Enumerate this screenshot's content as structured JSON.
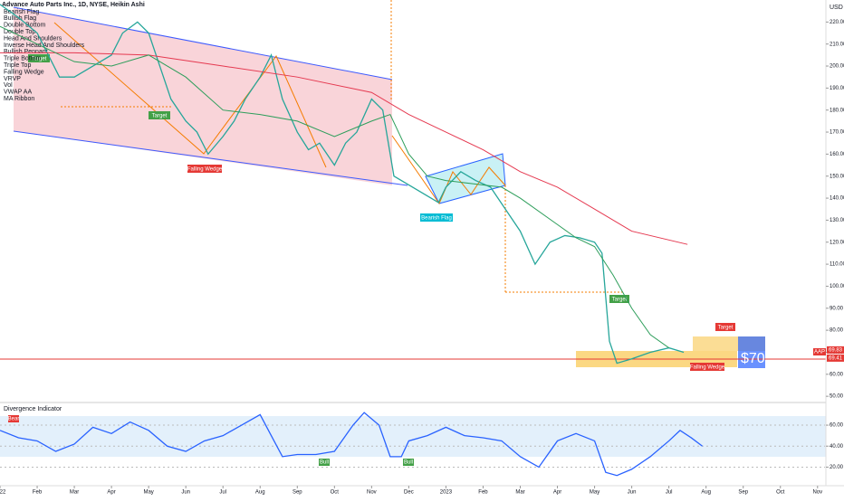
{
  "header": {
    "title": "Advance Auto Parts Inc., 1D, NYSE, Heikin Ashi",
    "indicators": [
      "Bearish Flag",
      "Bullish Flag",
      "Double Bottom",
      "Double Top",
      "Head And Shoulders",
      "Inverse Head And Shoulders",
      "Bullish Pennant",
      "Triple Bottom",
      "Triple Top",
      "Falling Wedge",
      "VRVP",
      "Vol",
      "VWAP AA",
      "MA Ribbon"
    ]
  },
  "annotations": {
    "target_1": "Target",
    "target_2": "Target",
    "target_3": "Target",
    "target_4": "Target",
    "wedge_1": "Falling Wedge",
    "wedge_2": "Falling Wedge",
    "flag": "Bearish Flag",
    "price_note": "$70",
    "currency": "USD",
    "symbol": "AAP",
    "bear": "Bear",
    "bull_1": "Bull",
    "bull_2": "Bull"
  },
  "chart_data": [
    {
      "type": "line",
      "xlim": [
        0,
        22.2
      ],
      "ylim": [
        48,
        230
      ],
      "xticks": [
        {
          "value": 0,
          "label": "22"
        },
        {
          "value": 1,
          "label": "Feb"
        },
        {
          "value": 2,
          "label": "Mar"
        },
        {
          "value": 3,
          "label": "Apr"
        },
        {
          "value": 4,
          "label": "May"
        },
        {
          "value": 5,
          "label": "Jun"
        },
        {
          "value": 6,
          "label": "Jul"
        },
        {
          "value": 7,
          "label": "Aug"
        },
        {
          "value": 8,
          "label": "Sep"
        },
        {
          "value": 9,
          "label": "Oct"
        },
        {
          "value": 10,
          "label": "Nov"
        },
        {
          "value": 11,
          "label": "Dec"
        },
        {
          "value": 12,
          "label": "2023"
        },
        {
          "value": 13,
          "label": "Feb"
        },
        {
          "value": 14,
          "label": "Mar"
        },
        {
          "value": 15,
          "label": "Apr"
        },
        {
          "value": 16,
          "label": "May"
        },
        {
          "value": 17,
          "label": "Jun"
        },
        {
          "value": 18,
          "label": "Jul"
        },
        {
          "value": 19,
          "label": "Aug"
        },
        {
          "value": 20,
          "label": "Sep"
        },
        {
          "value": 21,
          "label": "Oct"
        },
        {
          "value": 22,
          "label": "Nov"
        }
      ],
      "yticks": [
        {
          "value": 50,
          "label": "50.00"
        },
        {
          "value": 60,
          "label": "60.00"
        },
        {
          "value": 70,
          "label": "70.00"
        },
        {
          "value": 80,
          "label": "80.00"
        },
        {
          "value": 90,
          "label": "90.00"
        },
        {
          "value": 100,
          "label": "100.00"
        },
        {
          "value": 110,
          "label": "110.00"
        },
        {
          "value": 120,
          "label": "120.00"
        },
        {
          "value": 130,
          "label": "130.00"
        },
        {
          "value": 140,
          "label": "140.00"
        },
        {
          "value": 150,
          "label": "150.00"
        },
        {
          "value": 160,
          "label": "160.00"
        },
        {
          "value": 170,
          "label": "170.00"
        },
        {
          "value": 180,
          "label": "180.00"
        },
        {
          "value": 190,
          "label": "190.00"
        },
        {
          "value": 200,
          "label": "200.00"
        },
        {
          "value": 210,
          "label": "210.00"
        },
        {
          "value": 220,
          "label": "220.00"
        }
      ],
      "markers": [
        {
          "value": 69.83,
          "label": "69.83",
          "color": "#e53935"
        },
        {
          "value": 69.41,
          "label": "69.41",
          "color": "#e53935"
        }
      ],
      "series": [
        {
          "color": "#26a69a",
          "x": [
            0,
            0.5,
            1,
            1.3,
            1.6,
            2,
            2.5,
            3,
            3.3,
            3.7,
            4,
            4.3,
            4.6,
            5,
            5.3,
            5.6,
            6,
            6.3,
            6.6,
            7,
            7.3,
            7.6,
            8,
            8.3,
            8.6,
            9,
            9.3,
            9.6,
            10,
            10.3,
            10.6,
            11,
            11.4,
            11.8,
            12,
            12.4,
            12.8,
            13.2,
            13.6,
            14,
            14.4,
            14.8,
            15.2,
            15.6,
            16,
            16.2,
            16.4,
            16.6,
            17,
            17.5,
            18,
            18.4
          ],
          "values": [
            228,
            222,
            215,
            205,
            195,
            195,
            200,
            205,
            215,
            220,
            215,
            200,
            185,
            175,
            170,
            160,
            168,
            175,
            185,
            195,
            205,
            185,
            170,
            162,
            165,
            155,
            165,
            170,
            185,
            180,
            150,
            146,
            142,
            138,
            145,
            152,
            148,
            145,
            135,
            125,
            110,
            120,
            123,
            122,
            120,
            115,
            75,
            65,
            67,
            70,
            72,
            70
          ]
        },
        {
          "color": "#e53950",
          "x": [
            0,
            2,
            4,
            6,
            8,
            10,
            11,
            12,
            13,
            14,
            15,
            16,
            17,
            18.5
          ],
          "values": [
            206,
            206,
            205,
            200,
            195,
            188,
            178,
            170,
            162,
            152,
            145,
            135,
            125,
            119
          ]
        },
        {
          "color": "#2e9e5b",
          "x": [
            0,
            1,
            2,
            3,
            4,
            5,
            6,
            7,
            8,
            9,
            10,
            10.5,
            11,
            11.5,
            12,
            13,
            13.5,
            14,
            15,
            15.5,
            16,
            16.5,
            17,
            17.5,
            18
          ],
          "values": [
            218,
            210,
            202,
            200,
            205,
            195,
            180,
            178,
            175,
            168,
            175,
            178,
            160,
            150,
            148,
            146,
            145,
            140,
            128,
            122,
            118,
            105,
            90,
            78,
            72
          ]
        }
      ]
    },
    {
      "type": "line",
      "title": "Divergence Indicator",
      "xlim": [
        0,
        22.2
      ],
      "ylim": [
        4,
        79
      ],
      "yticks": [
        {
          "value": 20,
          "label": "20.00"
        },
        {
          "value": 40,
          "label": "40.00"
        },
        {
          "value": 60,
          "label": "60.00"
        }
      ],
      "series": [
        {
          "color": "#2962ff",
          "x": [
            0,
            0.5,
            1,
            1.5,
            2,
            2.5,
            3,
            3.5,
            4,
            4.5,
            5,
            5.5,
            6,
            6.5,
            7,
            7.3,
            7.6,
            8,
            8.5,
            9,
            9.5,
            9.8,
            10.2,
            10.5,
            10.8,
            11,
            11.5,
            12,
            12.5,
            13,
            13.5,
            14,
            14.5,
            15,
            15.5,
            16,
            16.3,
            16.6,
            17,
            17.5,
            18,
            18.3,
            18.6,
            18.9
          ],
          "values": [
            55,
            48,
            45,
            35,
            42,
            58,
            52,
            63,
            55,
            40,
            35,
            45,
            50,
            60,
            70,
            50,
            30,
            32,
            32,
            35,
            60,
            72,
            60,
            30,
            30,
            45,
            50,
            58,
            50,
            48,
            45,
            30,
            20,
            45,
            52,
            45,
            15,
            12,
            18,
            30,
            45,
            55,
            48,
            40
          ]
        }
      ]
    }
  ]
}
